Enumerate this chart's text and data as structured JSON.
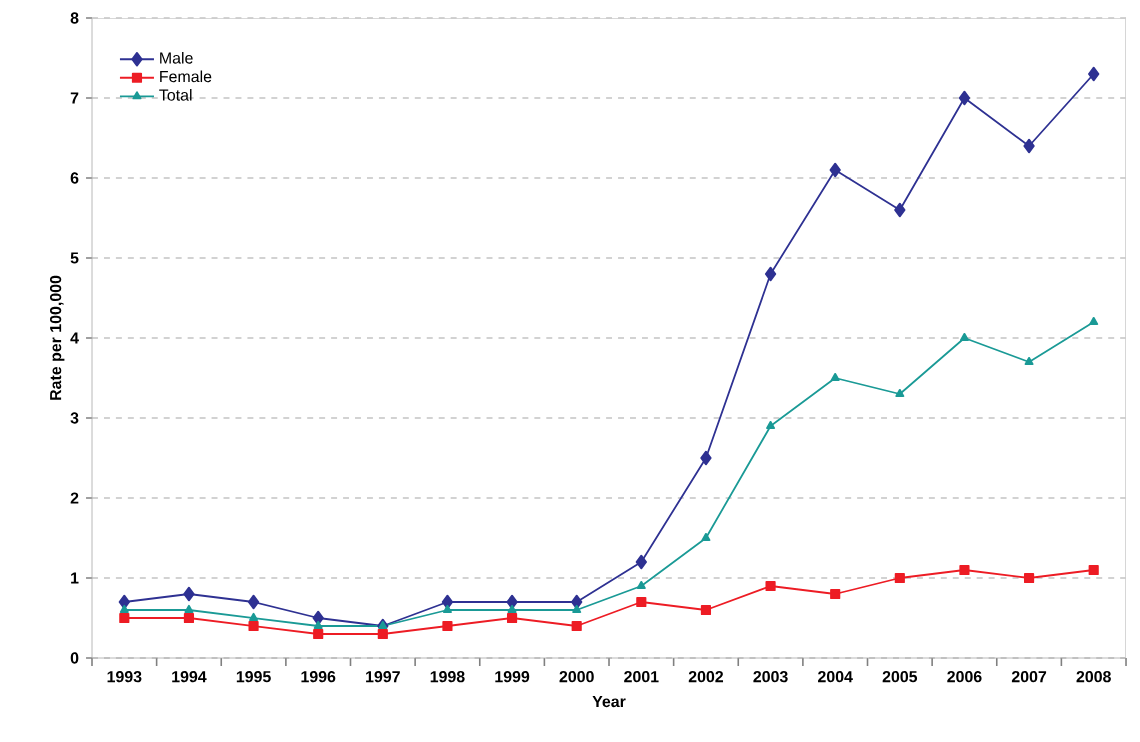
{
  "chart_data": {
    "type": "line",
    "xlabel": "Year",
    "ylabel": "Rate per 100,000",
    "categories": [
      "1993",
      "1994",
      "1995",
      "1996",
      "1997",
      "1998",
      "1999",
      "2000",
      "2001",
      "2002",
      "2003",
      "2004",
      "2005",
      "2006",
      "2007",
      "2008"
    ],
    "series": [
      {
        "name": "Male",
        "color": "#2e3192",
        "marker": "diamond",
        "values": [
          0.7,
          0.8,
          0.7,
          0.5,
          0.4,
          0.7,
          0.7,
          0.7,
          1.2,
          2.5,
          4.8,
          6.1,
          5.6,
          7.0,
          6.4,
          7.3
        ]
      },
      {
        "name": "Female",
        "color": "#ed1c24",
        "marker": "square",
        "values": [
          0.5,
          0.5,
          0.4,
          0.3,
          0.3,
          0.4,
          0.5,
          0.4,
          0.7,
          0.6,
          0.9,
          0.8,
          1.0,
          1.1,
          1.0,
          1.1
        ]
      },
      {
        "name": "Total",
        "color": "#1a9a96",
        "marker": "triangle",
        "values": [
          0.6,
          0.6,
          0.5,
          0.4,
          0.4,
          0.6,
          0.6,
          0.6,
          0.9,
          1.5,
          2.9,
          3.5,
          3.3,
          4.0,
          3.7,
          4.2
        ]
      }
    ],
    "ylim": [
      0,
      8
    ],
    "yticks": [
      0,
      1,
      2,
      3,
      4,
      5,
      6,
      7,
      8
    ],
    "grid": "y",
    "legend": "top left",
    "line_style": "solid"
  }
}
